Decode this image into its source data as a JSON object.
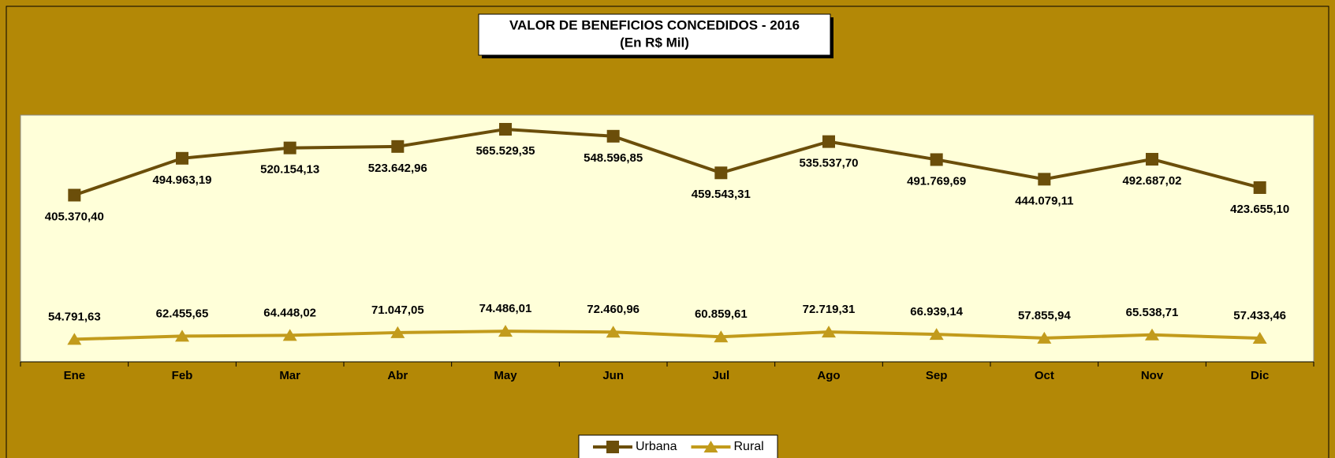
{
  "chart_data": {
    "type": "line",
    "title": "VALOR DE BENEFICIOS CONCEDIDOS -  2016",
    "subtitle": "(En R$ Mil)",
    "categories": [
      "Ene",
      "Feb",
      "Mar",
      "Abr",
      "May",
      "Jun",
      "Jul",
      "Ago",
      "Sep",
      "Oct",
      "Nov",
      "Dic"
    ],
    "ylim": [
      0,
      600000
    ],
    "series": [
      {
        "name": "Urbana",
        "color": "#6b4e0a",
        "marker": "square",
        "label_position": "below",
        "values": [
          405370.4,
          494963.19,
          520154.13,
          523642.96,
          565529.35,
          548596.85,
          459543.31,
          535537.7,
          491769.69,
          444079.11,
          492687.02,
          423655.1
        ],
        "value_labels": [
          "405.370,40",
          "494.963,19",
          "520.154,13",
          "523.642,96",
          "565.529,35",
          "548.596,85",
          "459.543,31",
          "535.537,70",
          "491.769,69",
          "444.079,11",
          "492.687,02",
          "423.655,10"
        ]
      },
      {
        "name": "Rural",
        "color": "#c29b1c",
        "marker": "triangle",
        "label_position": "above",
        "values": [
          54791.63,
          62455.65,
          64448.02,
          71047.05,
          74486.01,
          72460.96,
          60859.61,
          72719.31,
          66939.14,
          57855.94,
          65538.71,
          57433.46
        ],
        "value_labels": [
          "54.791,63",
          "62.455,65",
          "64.448,02",
          "71.047,05",
          "74.486,01",
          "72.460,96",
          "60.859,61",
          "72.719,31",
          "66.939,14",
          "57.855,94",
          "65.538,71",
          "57.433,46"
        ]
      }
    ],
    "legend": "bottom"
  }
}
